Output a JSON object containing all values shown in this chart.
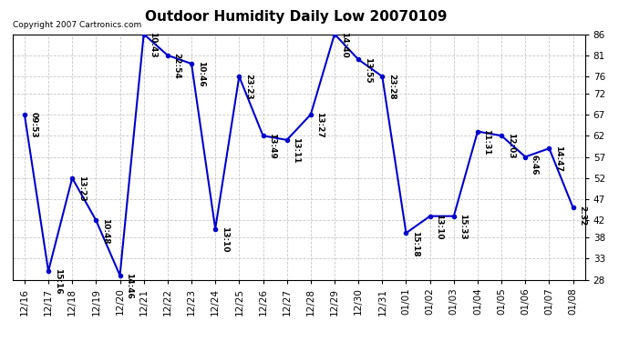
{
  "title": "Outdoor Humidity Daily Low 20070109",
  "copyright": "Copyright 2007 Cartronics.com",
  "x_labels": [
    "12/16",
    "12/17",
    "12/18",
    "12/19",
    "12/20",
    "12/21",
    "12/22",
    "12/23",
    "12/24",
    "12/25",
    "12/26",
    "12/27",
    "12/28",
    "12/29",
    "12/30",
    "12/31",
    "01/01",
    "01/02",
    "01/03",
    "01/04",
    "01/05",
    "01/06",
    "01/07",
    "01/08"
  ],
  "y_values": [
    67,
    30,
    52,
    42,
    29,
    86,
    81,
    79,
    40,
    76,
    62,
    61,
    67,
    86,
    80,
    76,
    39,
    43,
    43,
    63,
    62,
    57,
    59,
    45
  ],
  "point_labels": [
    "09:53",
    "15:16",
    "13:23",
    "10:48",
    "14:46",
    "10:43",
    "22:54",
    "10:46",
    "13:10",
    "23:23",
    "13:49",
    "13:11",
    "13:27",
    "14:40",
    "13:55",
    "23:28",
    "15:18",
    "13:10",
    "15:33",
    "11:31",
    "12:03",
    "6:46",
    "14:47",
    "2:32"
  ],
  "line_color": "#0000cc",
  "marker_color": "#0000cc",
  "bg_color": "#ffffff",
  "plot_bg_color": "#ffffff",
  "grid_color": "#c8c8c8",
  "ylim_min": 28,
  "ylim_max": 86,
  "yticks": [
    28,
    33,
    38,
    42,
    47,
    52,
    57,
    62,
    67,
    72,
    76,
    81,
    86
  ],
  "title_fontsize": 11,
  "label_fontsize": 6.5,
  "tick_fontsize": 7.5,
  "copyright_fontsize": 6.5
}
